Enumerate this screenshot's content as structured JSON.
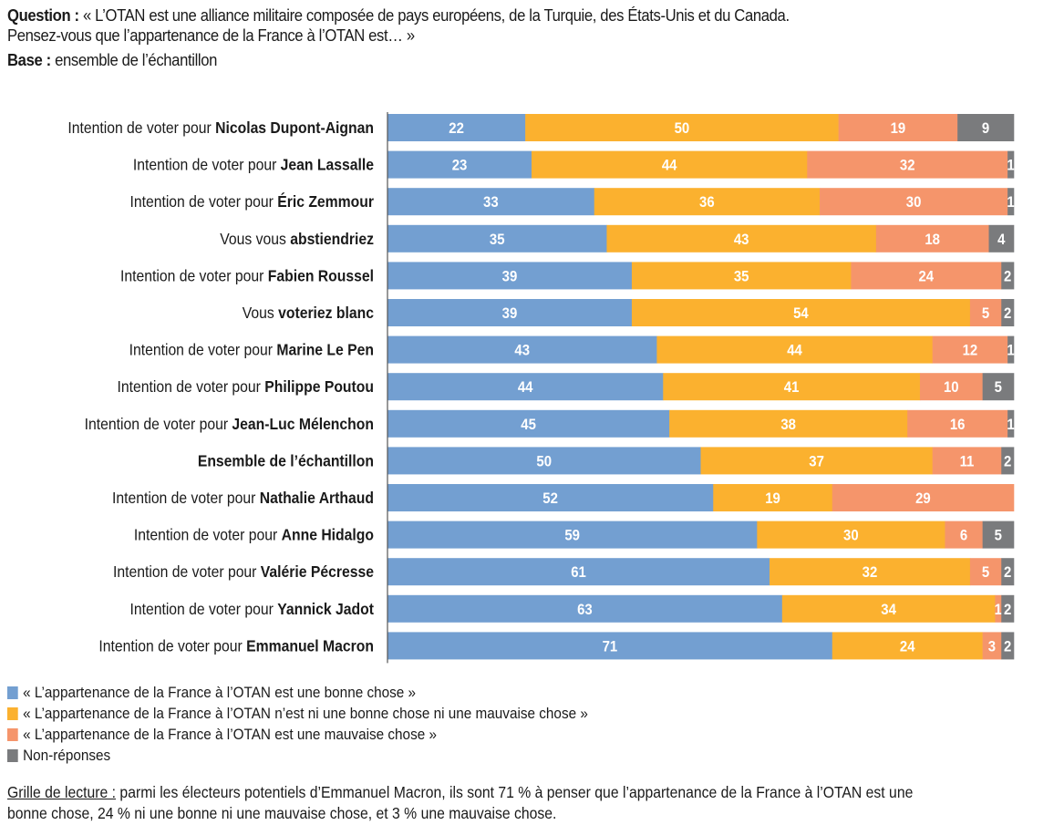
{
  "header": {
    "question_label": "Question :",
    "question_line1": " « L’OTAN est une alliance militaire composée de pays européens, de la Turquie, des États-Unis et du Canada.",
    "question_line2": "Pensez-vous que l’appartenance de la France à l’OTAN est… »",
    "base_label": "Base :",
    "base_text": " ensemble de l’échantillon"
  },
  "colors": {
    "bonne": "#739fd1",
    "ni": "#fbb12f",
    "mauvaise": "#f5956b",
    "nr": "#7a7b7d",
    "axis": "#555555"
  },
  "chart_data": {
    "type": "bar",
    "orientation": "horizontal-stacked-100",
    "title": "",
    "xlabel": "",
    "ylabel": "",
    "xlim": [
      0,
      100
    ],
    "grid": false,
    "legend_position": "bottom-left",
    "categories": [
      {
        "prefix": "Intention de voter pour ",
        "bold": "Nicolas Dupont-Aignan"
      },
      {
        "prefix": "Intention de voter pour ",
        "bold": "Jean Lassalle"
      },
      {
        "prefix": "Intention de voter pour ",
        "bold": "Éric Zemmour"
      },
      {
        "prefix": "Vous vous ",
        "bold": "abstiendriez"
      },
      {
        "prefix": "Intention de voter pour ",
        "bold": "Fabien Roussel"
      },
      {
        "prefix": "Vous ",
        "bold": "voteriez blanc"
      },
      {
        "prefix": "Intention de voter pour ",
        "bold": "Marine Le Pen"
      },
      {
        "prefix": "Intention de voter pour ",
        "bold": "Philippe Poutou"
      },
      {
        "prefix": "Intention de voter pour ",
        "bold": "Jean-Luc Mélenchon"
      },
      {
        "prefix": "",
        "bold": "Ensemble de l’échantillon"
      },
      {
        "prefix": "Intention de voter pour ",
        "bold": "Nathalie Arthaud"
      },
      {
        "prefix": "Intention de voter pour ",
        "bold": "Anne Hidalgo"
      },
      {
        "prefix": "Intention de voter pour ",
        "bold": "Valérie Pécresse"
      },
      {
        "prefix": "Intention de voter pour ",
        "bold": "Yannick Jadot"
      },
      {
        "prefix": "Intention de voter pour ",
        "bold": "Emmanuel Macron"
      }
    ],
    "series": [
      {
        "key": "bonne",
        "name": "« L’appartenance de la France à l’OTAN est une bonne chose »",
        "values": [
          22,
          23,
          33,
          35,
          39,
          39,
          43,
          44,
          45,
          50,
          52,
          59,
          61,
          63,
          71
        ]
      },
      {
        "key": "ni",
        "name": "« L’appartenance de la France à l’OTAN n’est ni une bonne chose ni une mauvaise chose »",
        "values": [
          50,
          44,
          36,
          43,
          35,
          54,
          44,
          41,
          38,
          37,
          19,
          30,
          32,
          34,
          24
        ]
      },
      {
        "key": "mauvaise",
        "name": "« L’appartenance de la France à l’OTAN est une mauvaise chose »",
        "values": [
          19,
          32,
          30,
          18,
          24,
          5,
          12,
          10,
          16,
          11,
          29,
          6,
          5,
          1,
          3
        ]
      },
      {
        "key": "nr",
        "name": "Non-réponses",
        "values": [
          9,
          1,
          1,
          4,
          2,
          2,
          1,
          5,
          1,
          2,
          0,
          5,
          2,
          2,
          2
        ]
      }
    ]
  },
  "note": {
    "label": "Grille de lecture :",
    "text": " parmi les électeurs potentiels d’Emmanuel Macron, ils sont 71 % à penser que l’appartenance de la France à l’OTAN est une",
    "text2": "bonne chose, 24 % ni une bonne ni une mauvaise chose, et 3 % une mauvaise chose."
  }
}
